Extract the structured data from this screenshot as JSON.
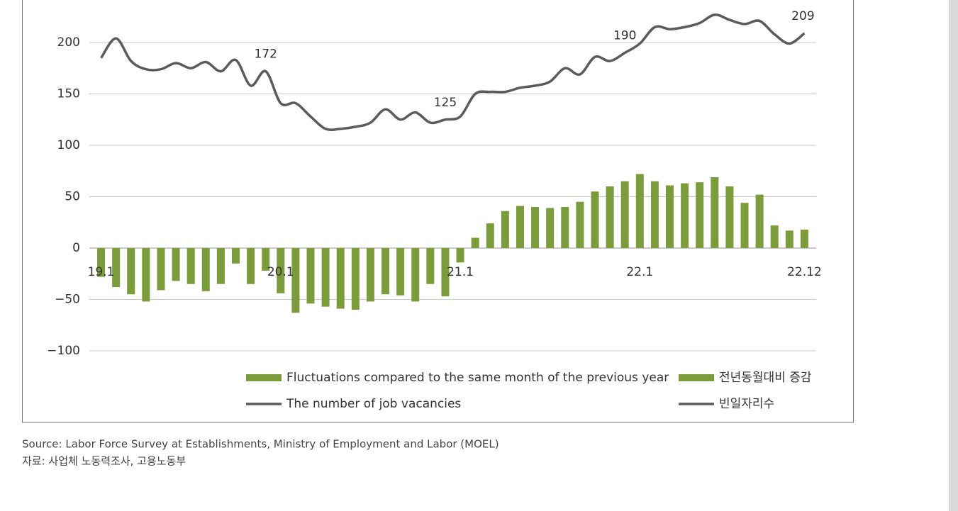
{
  "chart_data": {
    "type": "bar-line",
    "categories": [
      "19.1",
      null,
      null,
      null,
      null,
      null,
      null,
      null,
      null,
      null,
      null,
      null,
      "20.1",
      null,
      null,
      null,
      null,
      null,
      null,
      null,
      null,
      null,
      null,
      null,
      "21.1",
      null,
      null,
      null,
      null,
      null,
      null,
      null,
      null,
      null,
      null,
      null,
      "22.1",
      null,
      null,
      null,
      null,
      null,
      null,
      null,
      null,
      null,
      null,
      "22.12"
    ],
    "series": [
      {
        "name": "Fluctuations compared to the same month of the previous year",
        "name_ko": "전년동월대비 증감",
        "kind": "bar",
        "color": "#7b9c3b",
        "values": [
          -28,
          -38,
          -45,
          -52,
          -41,
          -32,
          -35,
          -42,
          -35,
          -15,
          -35,
          -22,
          -44,
          -63,
          -54,
          -57,
          -59,
          -60,
          -52,
          -45,
          -46,
          -52,
          -35,
          -47,
          -14,
          10,
          24,
          36,
          41,
          40,
          39,
          40,
          45,
          55,
          60,
          65,
          72,
          65,
          61,
          63,
          64,
          69,
          60,
          44,
          52,
          22,
          17,
          18
        ]
      },
      {
        "name": "The number of job vacancies",
        "name_ko": "빈일자리수",
        "kind": "line",
        "color": "#5b5b5b",
        "values": [
          185,
          204,
          182,
          174,
          174,
          180,
          175,
          181,
          172,
          183,
          158,
          172,
          141,
          141,
          128,
          116,
          116,
          118,
          122,
          135,
          125,
          132,
          122,
          125,
          128,
          150,
          152,
          152,
          156,
          158,
          162,
          175,
          169,
          186,
          182,
          190,
          199,
          215,
          213,
          215,
          219,
          227,
          222,
          218,
          221,
          208,
          199,
          209
        ],
        "labeled_indices": [
          11,
          23,
          35,
          47
        ]
      }
    ],
    "ylim": [
      -100,
      250
    ],
    "yticks": [
      {
        "value": -100,
        "label": "−100"
      },
      {
        "value": -50,
        "label": "−50"
      },
      0,
      50,
      100,
      150,
      200
    ],
    "grid": true,
    "source": [
      "Source: Labor Force Survey at Establishments, Ministry of Employment and Labor (MOEL)",
      "자료: 사업체 노동력조사, 고용노동부"
    ]
  }
}
